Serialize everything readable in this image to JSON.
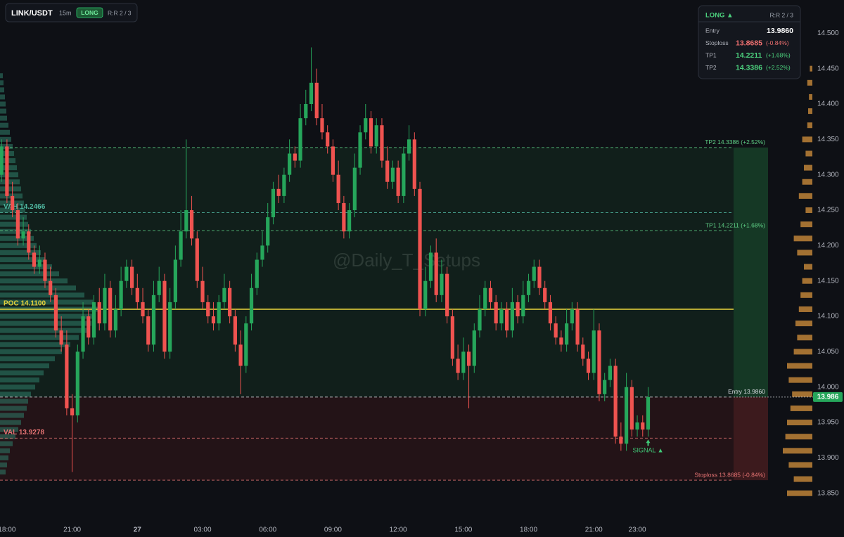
{
  "header": {
    "symbol": "LINK/USDT",
    "interval": "15m",
    "side": "LONG",
    "rr": "R:R 2 / 3"
  },
  "panel": {
    "title": "LONG ▲",
    "rr": "R:R 2 / 3",
    "rows": [
      {
        "label": "Entry",
        "value": "13.9860"
      },
      {
        "label": "Stoploss",
        "value": "13.8685",
        "change": "(-0.84%)"
      },
      {
        "label": "TP1",
        "value": "14.2211",
        "change": "(+1.68%)"
      },
      {
        "label": "TP2",
        "value": "14.3386",
        "change": "(+2.52%)"
      }
    ]
  },
  "watermark": "@Daily_T_Setups",
  "chart_data": {
    "type": "candlestick",
    "up_color": "#26a65b",
    "down_color": "#ef5350",
    "x": [
      -0.25,
      0,
      0.25,
      0.5,
      0.75,
      1,
      1.25,
      1.5,
      1.75,
      2,
      2.25,
      2.5,
      2.75,
      3,
      3.25,
      3.5,
      3.75,
      4,
      4.25,
      4.5,
      4.75,
      5,
      5.25,
      5.5,
      5.75,
      6,
      6.25,
      6.5,
      6.75,
      7,
      7.25,
      7.5,
      7.75,
      8,
      8.25,
      8.5,
      8.75,
      9,
      9.25,
      9.5,
      9.75,
      10,
      10.25,
      10.5,
      10.75,
      11,
      11.25,
      11.5,
      11.75,
      12,
      12.25,
      12.5,
      12.75,
      13,
      13.25,
      13.5,
      13.75,
      14,
      14.25,
      14.5,
      14.75,
      15,
      15.25,
      15.5,
      15.75,
      16,
      16.25,
      16.5,
      16.75,
      17,
      17.25,
      17.5,
      17.75,
      18,
      18.25,
      18.5,
      18.75,
      19,
      19.25,
      19.5,
      19.75,
      20,
      20.25,
      20.5,
      20.75,
      21,
      21.25,
      21.5,
      21.75,
      22,
      22.25,
      22.5,
      22.75,
      23,
      23.25,
      23.5,
      23.75,
      24,
      24.25,
      24.5,
      24.75,
      25,
      25.25,
      25.5,
      25.75,
      26,
      26.25,
      26.5,
      26.75,
      27,
      27.25,
      27.5,
      27.75,
      28,
      28.25,
      28.5,
      28.75,
      29,
      29.25,
      29.5
    ],
    "open": [
      14.3,
      14.34,
      14.27,
      14.25,
      14.21,
      14.22,
      14.19,
      14.17,
      14.18,
      14.15,
      14.13,
      14.08,
      14.06,
      13.97,
      13.96,
      14.05,
      14.1,
      14.07,
      14.12,
      14.09,
      14.14,
      14.08,
      14.11,
      14.15,
      14.17,
      14.14,
      14.12,
      14.1,
      14.06,
      14.13,
      14.15,
      14.05,
      14.12,
      14.18,
      14.22,
      14.25,
      14.21,
      14.15,
      14.12,
      14.1,
      14.09,
      14.12,
      14.14,
      14.1,
      14.06,
      14.03,
      14.09,
      14.14,
      14.18,
      14.2,
      14.24,
      14.28,
      14.27,
      14.3,
      14.33,
      14.32,
      14.38,
      14.4,
      14.43,
      14.38,
      14.36,
      14.34,
      14.3,
      14.26,
      14.22,
      14.25,
      14.31,
      14.36,
      14.38,
      14.34,
      14.37,
      14.32,
      14.29,
      14.31,
      14.27,
      14.33,
      14.35,
      14.28,
      14.11,
      14.15,
      14.19,
      14.13,
      14.16,
      14.1,
      14.04,
      14.02,
      14.05,
      14.03,
      14.08,
      14.11,
      14.14,
      14.12,
      14.09,
      14.11,
      14.08,
      14.12,
      14.1,
      14.13,
      14.15,
      14.17,
      14.14,
      14.12,
      14.09,
      14.07,
      14.06,
      14.09,
      14.11,
      14.06,
      14.04,
      14.02,
      14.08,
      13.99,
      14.01,
      14.03,
      13.93,
      13.92,
      14.0,
      13.94,
      13.95,
      13.94
    ],
    "high": [
      14.35,
      14.35,
      14.29,
      14.26,
      14.24,
      14.23,
      14.2,
      14.2,
      14.19,
      14.17,
      14.14,
      14.1,
      14.08,
      13.99,
      14.06,
      14.12,
      14.11,
      14.13,
      14.14,
      14.16,
      14.15,
      14.13,
      14.17,
      14.18,
      14.18,
      14.16,
      14.14,
      14.11,
      14.15,
      14.17,
      14.16,
      14.14,
      14.2,
      14.25,
      14.35,
      14.27,
      14.22,
      14.17,
      14.13,
      14.12,
      14.13,
      14.16,
      14.15,
      14.11,
      14.08,
      14.1,
      14.16,
      14.19,
      14.22,
      14.26,
      14.29,
      14.3,
      14.31,
      14.35,
      14.34,
      14.4,
      14.42,
      14.48,
      14.45,
      14.4,
      14.37,
      14.35,
      14.32,
      14.27,
      14.26,
      14.33,
      14.37,
      14.4,
      14.39,
      14.38,
      14.38,
      14.34,
      14.32,
      14.32,
      14.34,
      14.37,
      14.36,
      14.29,
      14.17,
      14.2,
      14.21,
      14.18,
      14.17,
      14.11,
      14.06,
      14.07,
      14.06,
      14.09,
      14.13,
      14.15,
      14.15,
      14.13,
      14.12,
      14.12,
      14.14,
      14.13,
      14.15,
      14.16,
      14.18,
      14.18,
      14.15,
      14.13,
      14.1,
      14.08,
      14.11,
      14.12,
      14.12,
      14.07,
      14.05,
      14.11,
      14.09,
      14.02,
      14.04,
      14.04,
      13.95,
      14.02,
      14.01,
      13.96,
      13.96,
      14.0
    ],
    "low": [
      14.29,
      14.26,
      14.24,
      14.2,
      14.2,
      14.18,
      14.16,
      14.16,
      14.14,
      14.12,
      14.07,
      14.05,
      13.96,
      13.88,
      13.95,
      14.04,
      14.06,
      14.06,
      14.08,
      14.08,
      14.07,
      14.07,
      14.1,
      14.14,
      14.13,
      14.11,
      14.09,
      14.05,
      14.05,
      14.12,
      14.04,
      14.04,
      14.11,
      14.17,
      14.21,
      14.2,
      14.14,
      14.11,
      14.09,
      14.08,
      14.08,
      14.11,
      14.09,
      14.05,
      13.99,
      14.02,
      14.08,
      14.13,
      14.17,
      14.19,
      14.23,
      14.26,
      14.26,
      14.29,
      14.31,
      14.31,
      14.37,
      14.39,
      14.37,
      14.35,
      14.33,
      14.29,
      14.25,
      14.21,
      14.21,
      14.24,
      14.3,
      14.35,
      14.33,
      14.33,
      14.31,
      14.28,
      14.28,
      14.26,
      14.26,
      14.32,
      14.27,
      14.1,
      14.1,
      14.14,
      14.12,
      14.12,
      14.09,
      14.03,
      14.01,
      14.01,
      13.97,
      14.02,
      14.07,
      14.1,
      14.11,
      14.08,
      14.08,
      14.07,
      14.07,
      14.09,
      14.09,
      14.12,
      14.14,
      14.13,
      14.11,
      14.08,
      14.06,
      14.05,
      14.05,
      14.08,
      14.05,
      14.03,
      14.01,
      14.01,
      13.98,
      13.98,
      14.0,
      13.92,
      13.91,
      13.91,
      13.93,
      13.93,
      13.93,
      13.93
    ],
    "close": [
      14.34,
      14.27,
      14.25,
      14.21,
      14.22,
      14.19,
      14.17,
      14.18,
      14.15,
      14.13,
      14.08,
      14.06,
      13.97,
      13.96,
      14.05,
      14.1,
      14.07,
      14.12,
      14.09,
      14.14,
      14.08,
      14.11,
      14.15,
      14.17,
      14.14,
      14.12,
      14.1,
      14.06,
      14.13,
      14.15,
      14.05,
      14.12,
      14.18,
      14.22,
      14.25,
      14.21,
      14.15,
      14.12,
      14.1,
      14.09,
      14.12,
      14.14,
      14.1,
      14.06,
      14.03,
      14.09,
      14.14,
      14.18,
      14.2,
      14.24,
      14.28,
      14.27,
      14.3,
      14.33,
      14.32,
      14.38,
      14.4,
      14.43,
      14.38,
      14.36,
      14.34,
      14.3,
      14.26,
      14.22,
      14.25,
      14.31,
      14.36,
      14.38,
      14.34,
      14.37,
      14.32,
      14.29,
      14.31,
      14.27,
      14.33,
      14.35,
      14.28,
      14.11,
      14.15,
      14.19,
      14.13,
      14.16,
      14.1,
      14.04,
      14.02,
      14.05,
      14.03,
      14.08,
      14.11,
      14.14,
      14.12,
      14.09,
      14.11,
      14.08,
      14.12,
      14.1,
      14.13,
      14.15,
      14.17,
      14.14,
      14.12,
      14.09,
      14.07,
      14.06,
      14.09,
      14.11,
      14.06,
      14.04,
      14.02,
      14.08,
      13.99,
      14.01,
      14.03,
      13.93,
      13.92,
      14.0,
      13.94,
      13.95,
      13.94,
      13.986
    ],
    "xlim": [
      -0.32,
      35.6
    ],
    "ylim": [
      13.812,
      14.547
    ],
    "xticks": [
      {
        "value": 0,
        "label": "18:00"
      },
      {
        "value": 3,
        "label": "21:00"
      },
      {
        "value": 6,
        "label": "27"
      },
      {
        "value": 9,
        "label": "03:00"
      },
      {
        "value": 12,
        "label": "06:00"
      },
      {
        "value": 15,
        "label": "09:00"
      },
      {
        "value": 18,
        "label": "12:00"
      },
      {
        "value": 21,
        "label": "15:00"
      },
      {
        "value": 24,
        "label": "18:00"
      },
      {
        "value": 27,
        "label": "21:00"
      },
      {
        "value": 29,
        "label": "23:00"
      }
    ],
    "yticks": [
      {
        "value": 14.5,
        "label": "14.500"
      },
      {
        "value": 14.45,
        "label": "14.450"
      },
      {
        "value": 14.4,
        "label": "14.400"
      },
      {
        "value": 14.35,
        "label": "14.350"
      },
      {
        "value": 14.3,
        "label": "14.300"
      },
      {
        "value": 14.25,
        "label": "14.250"
      },
      {
        "value": 14.2,
        "label": "14.200"
      },
      {
        "value": 14.15,
        "label": "14.150"
      },
      {
        "value": 14.1,
        "label": "14.100"
      },
      {
        "value": 14.05,
        "label": "14.050"
      },
      {
        "value": 14,
        "label": "14.000"
      },
      {
        "value": 13.95,
        "label": "13.950"
      },
      {
        "value": 13.9,
        "label": "13.900"
      },
      {
        "value": 13.85,
        "label": "13.850"
      }
    ],
    "grid": false,
    "levels": [
      {
        "value": 14.3386,
        "label": "TP2 14.3386 (+2.52%)",
        "color": "#5fcf86",
        "dash": true,
        "label_side": "right"
      },
      {
        "value": 14.2211,
        "label": "TP1 14.2211 (+1.68%)",
        "color": "#5fcf86",
        "dash": true,
        "label_side": "right"
      },
      {
        "value": 14.2466,
        "label": "VAH  14.2466",
        "color": "#4fb7a0",
        "dash": true,
        "label_side": "left"
      },
      {
        "value": 14.11,
        "label": "POC  14.1100",
        "color": "#e5d23c",
        "dash": false,
        "label_side": "left"
      },
      {
        "value": 13.986,
        "label": "Entry 13.9860",
        "color": "#d8dbe0",
        "dash": true,
        "label_side": "right"
      },
      {
        "value": 13.9278,
        "label": "VAL  13.9278",
        "color": "#e57373",
        "dash": true,
        "label_side": "left"
      },
      {
        "value": 13.8685,
        "label": "Stoploss 13.8685 (-0.84%)",
        "color": "#e57373",
        "dash": true,
        "label_side": "right"
      }
    ],
    "last_price": {
      "value": 13.986,
      "label": "13.986",
      "color": "#26a65b"
    },
    "signal": {
      "label": "SIGNAL ▲",
      "color": "#3fc977"
    },
    "volume_profile": {
      "color": "#2f7d6a",
      "prices": [
        13.88,
        13.89,
        13.9,
        13.91,
        13.92,
        13.93,
        13.94,
        13.95,
        13.96,
        13.97,
        13.98,
        13.99,
        14,
        14.01,
        14.02,
        14.03,
        14.04,
        14.05,
        14.06,
        14.07,
        14.08,
        14.09,
        14.1,
        14.11,
        14.12,
        14.13,
        14.14,
        14.15,
        14.16,
        14.17,
        14.18,
        14.19,
        14.2,
        14.21,
        14.22,
        14.23,
        14.24,
        14.25,
        14.26,
        14.27,
        14.28,
        14.29,
        14.3,
        14.31,
        14.32,
        14.33,
        14.34,
        14.35,
        14.36,
        14.37,
        14.38,
        14.39,
        14.4,
        14.41,
        14.42,
        14.43,
        14.44
      ],
      "values": [
        8,
        10,
        12,
        14,
        18,
        22,
        26,
        30,
        34,
        38,
        40,
        44,
        50,
        56,
        62,
        70,
        78,
        88,
        100,
        112,
        124,
        130,
        136,
        140,
        132,
        120,
        108,
        96,
        84,
        74,
        64,
        58,
        52,
        48,
        44,
        40,
        38,
        36,
        34,
        32,
        30,
        28,
        26,
        24,
        22,
        20,
        18,
        16,
        14,
        12,
        10,
        9,
        8,
        7,
        6,
        5,
        4
      ]
    },
    "right_profile": {
      "color": "#c98a3a",
      "prices": [
        13.85,
        13.87,
        13.89,
        13.91,
        13.93,
        13.95,
        13.97,
        13.99,
        14.01,
        14.03,
        14.05,
        14.07,
        14.09,
        14.11,
        14.13,
        14.15,
        14.17,
        14.19,
        14.21,
        14.23,
        14.25,
        14.27,
        14.29,
        14.31,
        14.33,
        14.35,
        14.37,
        14.39,
        14.41,
        14.43,
        14.45
      ],
      "values": [
        30,
        22,
        28,
        35,
        32,
        30,
        26,
        24,
        28,
        30,
        22,
        18,
        20,
        16,
        14,
        12,
        10,
        18,
        22,
        14,
        8,
        16,
        12,
        10,
        8,
        12,
        6,
        5,
        4,
        6,
        3
      ]
    }
  }
}
